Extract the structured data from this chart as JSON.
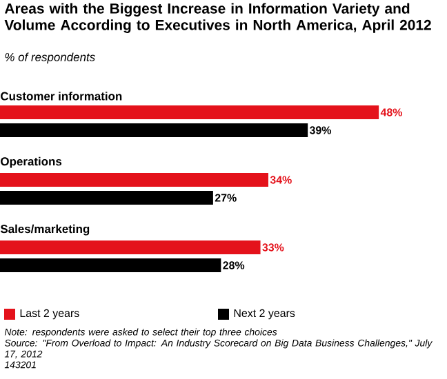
{
  "chart_data": {
    "type": "bar",
    "orientation": "horizontal",
    "title": "Areas with the Biggest Increase in Information Variety and Volume According to Executives in North America, April 2012",
    "subtitle": "% of respondents",
    "categories": [
      "Customer information",
      "Operations",
      "Sales/marketing"
    ],
    "series": [
      {
        "name": "Last 2 years",
        "color": "#e4121b",
        "values": [
          48,
          34,
          33
        ],
        "value_labels": [
          "48%",
          "34%",
          "33%"
        ]
      },
      {
        "name": "Next 2 years",
        "color": "#000000",
        "values": [
          39,
          27,
          28
        ],
        "value_labels": [
          "39%",
          "27%",
          "28%"
        ]
      }
    ],
    "legend": "bottom",
    "annotations": [
      "Note: respondents were asked to select their top three choices",
      "Source: \"From Overload to Impact: An Industry Scorecard on Big Data Business Challenges,\" July 17, 2012",
      "143201"
    ]
  }
}
